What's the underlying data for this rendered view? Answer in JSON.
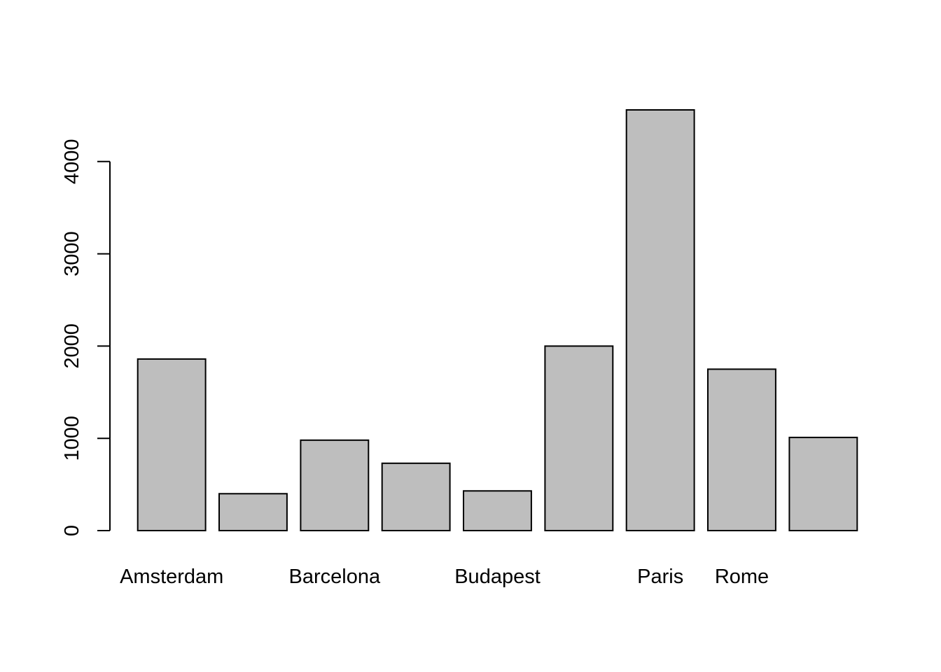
{
  "chart_data": {
    "type": "bar",
    "categories": [
      "Amsterdam",
      "",
      "Barcelona",
      "",
      "Budapest",
      "",
      "Paris",
      "Rome",
      ""
    ],
    "values": [
      1860,
      400,
      980,
      730,
      430,
      2000,
      4560,
      1750,
      1010
    ],
    "title": "",
    "xlabel": "",
    "ylabel": "",
    "ylim": [
      0,
      4560
    ],
    "yticks": [
      0,
      1000,
      2000,
      3000,
      4000
    ],
    "ytick_labels": [
      "0",
      "1000",
      "2000",
      "3000",
      "4000"
    ],
    "grid": false,
    "legend": "none",
    "colors": {
      "bar_fill": "#bebebe",
      "bar_stroke": "#000000",
      "background": "#ffffff"
    }
  }
}
